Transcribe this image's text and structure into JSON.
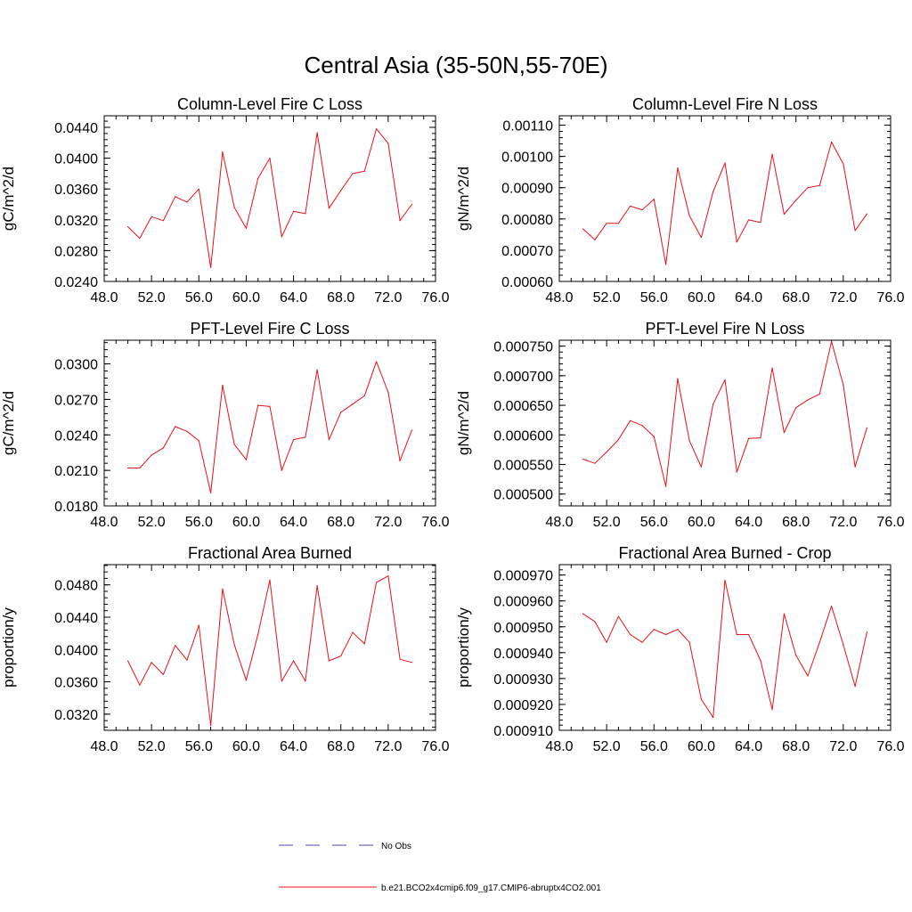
{
  "title": "Central Asia (35-50N,55-70E)",
  "legend": {
    "entries": [
      {
        "label": "No Obs",
        "color": "#4a4aa8",
        "style": "dashed"
      },
      {
        "label": "b.e21.BCO2x4cmip6.f09_g17.CMIP6-abruptx4CO2.001",
        "color": "#e8101a",
        "style": "solid"
      }
    ]
  },
  "line_color": "#e8101a",
  "chart_data": [
    {
      "type": "line",
      "title": "Column-Level Fire C Loss",
      "ylabel": "gC/m^2/d",
      "xlim": [
        48,
        76
      ],
      "xticks": [
        48,
        52,
        56,
        60,
        64,
        68,
        72,
        76
      ],
      "ylim": [
        0.024,
        0.0455
      ],
      "yticks": [
        0.024,
        0.028,
        0.032,
        0.036,
        0.04,
        0.044
      ],
      "ydecimals": 4,
      "x": [
        50,
        51,
        52,
        53,
        54,
        55,
        56,
        57,
        58,
        59,
        60,
        61,
        62,
        63,
        64,
        65,
        66,
        67,
        68,
        69,
        70,
        71,
        72,
        73,
        74
      ],
      "values": [
        0.0311,
        0.0296,
        0.0324,
        0.0319,
        0.035,
        0.0343,
        0.036,
        0.0258,
        0.0408,
        0.0336,
        0.0309,
        0.0374,
        0.04,
        0.0298,
        0.0331,
        0.0328,
        0.0433,
        0.0335,
        0.0358,
        0.038,
        0.0383,
        0.0438,
        0.0419,
        0.0319,
        0.034
      ]
    },
    {
      "type": "line",
      "title": "Column-Level Fire N Loss",
      "ylabel": "gN/m^2/d",
      "xlim": [
        48,
        76
      ],
      "xticks": [
        48,
        52,
        56,
        60,
        64,
        68,
        72,
        76
      ],
      "ylim": [
        0.0006,
        0.00113
      ],
      "yticks": [
        0.0006,
        0.0007,
        0.0008,
        0.0009,
        0.001,
        0.0011
      ],
      "ydecimals": 5,
      "x": [
        50,
        51,
        52,
        53,
        54,
        55,
        56,
        57,
        58,
        59,
        60,
        61,
        62,
        63,
        64,
        65,
        66,
        67,
        68,
        69,
        70,
        71,
        72,
        73,
        74
      ],
      "values": [
        0.000768,
        0.000733,
        0.000786,
        0.000786,
        0.000841,
        0.000829,
        0.000863,
        0.000654,
        0.000963,
        0.00081,
        0.000741,
        0.000887,
        0.000979,
        0.000726,
        0.000797,
        0.000789,
        0.001007,
        0.000815,
        0.00086,
        0.0009,
        0.000907,
        0.001046,
        0.000976,
        0.000763,
        0.000816
      ]
    },
    {
      "type": "line",
      "title": "PFT-Level Fire C Loss",
      "ylabel": "gC/m^2/d",
      "xlim": [
        48,
        76
      ],
      "xticks": [
        48,
        52,
        56,
        60,
        64,
        68,
        72,
        76
      ],
      "ylim": [
        0.018,
        0.032
      ],
      "yticks": [
        0.018,
        0.021,
        0.024,
        0.027,
        0.03
      ],
      "ydecimals": 4,
      "x": [
        50,
        51,
        52,
        53,
        54,
        55,
        56,
        57,
        58,
        59,
        60,
        61,
        62,
        63,
        64,
        65,
        66,
        67,
        68,
        69,
        70,
        71,
        72,
        73,
        74
      ],
      "values": [
        0.0212,
        0.0212,
        0.0223,
        0.0229,
        0.0247,
        0.0243,
        0.0235,
        0.0191,
        0.0282,
        0.0232,
        0.0219,
        0.0265,
        0.0264,
        0.021,
        0.0236,
        0.0238,
        0.0295,
        0.0236,
        0.0259,
        0.0266,
        0.0273,
        0.0302,
        0.0276,
        0.0218,
        0.0244
      ]
    },
    {
      "type": "line",
      "title": "PFT-Level Fire N Loss",
      "ylabel": "gN/m^2/d",
      "xlim": [
        48,
        76
      ],
      "xticks": [
        48,
        52,
        56,
        60,
        64,
        68,
        72,
        76
      ],
      "ylim": [
        0.00048,
        0.00076
      ],
      "yticks": [
        0.0005,
        0.00055,
        0.0006,
        0.00065,
        0.0007,
        0.00075
      ],
      "ydecimals": 6,
      "x": [
        50,
        51,
        52,
        53,
        54,
        55,
        56,
        57,
        58,
        59,
        60,
        61,
        62,
        63,
        64,
        65,
        66,
        67,
        68,
        69,
        70,
        71,
        72,
        73,
        74
      ],
      "values": [
        0.000559,
        0.000552,
        0.000571,
        0.000592,
        0.000624,
        0.000616,
        0.000597,
        0.000513,
        0.000695,
        0.00059,
        0.000546,
        0.000652,
        0.000693,
        0.000537,
        0.000594,
        0.000595,
        0.000713,
        0.000604,
        0.000646,
        0.000659,
        0.000669,
        0.000758,
        0.000684,
        0.000546,
        0.000612
      ]
    },
    {
      "type": "line",
      "title": "Fractional Area Burned",
      "ylabel": "proportion/y",
      "xlim": [
        48,
        76
      ],
      "xticks": [
        48,
        52,
        56,
        60,
        64,
        68,
        72,
        76
      ],
      "ylim": [
        0.03,
        0.0505
      ],
      "yticks": [
        0.032,
        0.036,
        0.04,
        0.044,
        0.048
      ],
      "ydecimals": 4,
      "x": [
        50,
        51,
        52,
        53,
        54,
        55,
        56,
        57,
        58,
        59,
        60,
        61,
        62,
        63,
        64,
        65,
        66,
        67,
        68,
        69,
        70,
        71,
        72,
        73,
        74
      ],
      "values": [
        0.0386,
        0.0356,
        0.0384,
        0.0369,
        0.0405,
        0.0387,
        0.043,
        0.0306,
        0.0475,
        0.0406,
        0.0362,
        0.0419,
        0.0486,
        0.0361,
        0.0386,
        0.0361,
        0.0479,
        0.0386,
        0.0392,
        0.0421,
        0.0407,
        0.0483,
        0.0491,
        0.0388,
        0.0384
      ]
    },
    {
      "type": "line",
      "title": "Fractional Area Burned - Crop",
      "ylabel": "proportion/y",
      "xlim": [
        48,
        76
      ],
      "xticks": [
        48,
        52,
        56,
        60,
        64,
        68,
        72,
        76
      ],
      "ylim": [
        0.00091,
        0.000974
      ],
      "yticks": [
        0.00091,
        0.00092,
        0.00093,
        0.00094,
        0.00095,
        0.00096,
        0.00097
      ],
      "ydecimals": 6,
      "x": [
        50,
        51,
        52,
        53,
        54,
        55,
        56,
        57,
        58,
        59,
        60,
        61,
        62,
        63,
        64,
        65,
        66,
        67,
        68,
        69,
        70,
        71,
        72,
        73,
        74
      ],
      "values": [
        0.000955,
        0.000952,
        0.000944,
        0.000954,
        0.000947,
        0.000944,
        0.000949,
        0.000947,
        0.000949,
        0.000944,
        0.000922,
        0.000915,
        0.000968,
        0.000947,
        0.000947,
        0.000937,
        0.000918,
        0.000955,
        0.000939,
        0.000931,
        0.000944,
        0.000958,
        0.000943,
        0.000927,
        0.000948
      ]
    }
  ]
}
